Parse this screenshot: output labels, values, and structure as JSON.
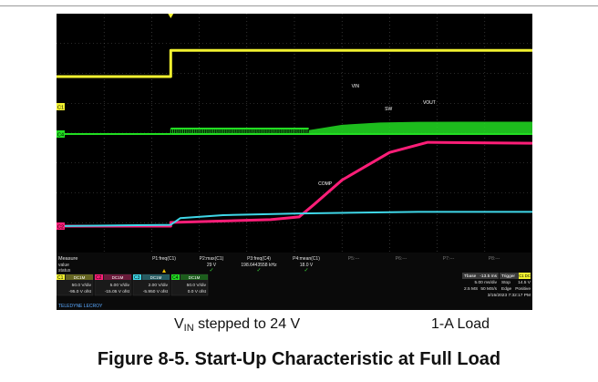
{
  "chart_data": {
    "type": "line",
    "title": "",
    "xlabel": "",
    "ylabel": "",
    "timebase": {
      "label": "Tbase",
      "value": "-13.5 ms",
      "per_div": "5.00 ms/div",
      "samples": "2.5 MS",
      "rate": "50 MS/s"
    },
    "trigger": {
      "label": "Trigger",
      "value": "C1 DC",
      "mode": "Stop",
      "level": "14.5 V",
      "type": "Edge",
      "slope": "Positive"
    },
    "timestamp": "3/15/2023 7:32:17 PM",
    "brand": "TELEDYNE LECROY",
    "series": [
      {
        "name": "VIN",
        "color": "#f2f230",
        "x": [
          0,
          2.4,
          2.4,
          10
        ],
        "y": [
          15,
          15,
          24,
          24
        ]
      },
      {
        "name": "SW",
        "color": "#22dd22",
        "x": [
          0,
          2.4,
          2.4,
          5.3,
          6.0,
          6.8,
          7.6,
          10
        ],
        "y": [
          0,
          0,
          6,
          6,
          14,
          17.5,
          18.6,
          18.8
        ]
      },
      {
        "name": "VOUT",
        "color": "#ff1e78",
        "x": [
          0,
          2.4,
          2.4,
          4.5,
          5.1,
          5.4,
          6.0,
          7.0,
          7.8,
          10
        ],
        "y": [
          0,
          0,
          0.8,
          1.4,
          2.0,
          4.6,
          10.0,
          16.0,
          18.2,
          18.0
        ]
      },
      {
        "name": "COMP",
        "color": "#3fd7e8",
        "x": [
          0,
          2.4,
          2.6,
          3.5,
          5.0,
          7.6,
          10
        ],
        "y": [
          0,
          0.3,
          1.9,
          2.6,
          3.0,
          3.4,
          3.4
        ]
      }
    ],
    "measure": {
      "header": "Measure",
      "row_labels": [
        "value",
        "status"
      ],
      "params": [
        {
          "name": "P1:freq(C1)",
          "value": "",
          "status": ""
        },
        {
          "name": "P2:max(C1)",
          "value": "29 V",
          "status": "✓"
        },
        {
          "name": "P3:freq(C4)",
          "value": "198.6443558 kHz",
          "status": "✓"
        },
        {
          "name": "P4:mean(C1)",
          "value": "18.0 V",
          "status": "✓"
        },
        {
          "name": "P5:---",
          "value": "",
          "status": ""
        },
        {
          "name": "P6:---",
          "value": "",
          "status": ""
        },
        {
          "name": "P7:---",
          "value": "",
          "status": ""
        },
        {
          "name": "P8:---",
          "value": "",
          "status": ""
        }
      ]
    },
    "channels": [
      {
        "label": "C1",
        "coupling": "DC1M",
        "scale": "50.0 V/div",
        "offset": "-95.0 V ofst",
        "color": "#f2f230"
      },
      {
        "label": "C2",
        "coupling": "DC1M",
        "scale": "5.00 V/div",
        "offset": "-15.05 V ofst",
        "color": "#ff1e78"
      },
      {
        "label": "C3",
        "coupling": "DC1M",
        "scale": "2.00 V/div",
        "offset": "-5.950 V ofst",
        "color": "#3fd7e8"
      },
      {
        "label": "C4",
        "coupling": "DC1M",
        "scale": "50.0 V/div",
        "offset": "0.0 V ofst",
        "color": "#22dd22"
      }
    ]
  },
  "caption": {
    "vin_main": "V",
    "vin_sub": "IN",
    "vin_rest": " stepped to 24 V",
    "load": "1-A Load"
  },
  "figure_title": "Figure 8-5. Start-Up Characteristic at Full Load"
}
